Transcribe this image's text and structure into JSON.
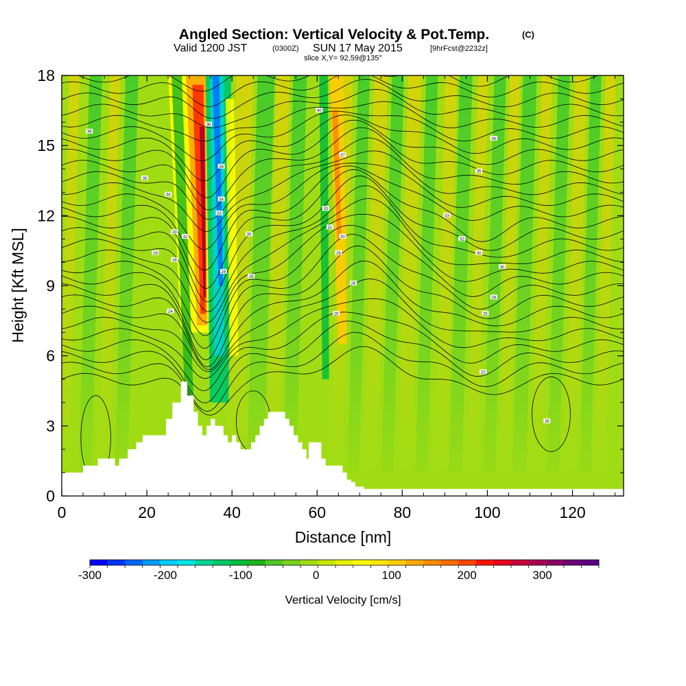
{
  "title": {
    "main": "Angled Section: Vertical Velocity & Pot.Temp.",
    "main_suffix": "(C)",
    "valid_prefix": "Valid 1200 JST",
    "valid_z": "(0300Z)",
    "valid_date": "SUN 17 May 2015",
    "forecast": "[9hrFcst@2232z]",
    "slice": "slice X,Y= 92,59@135°"
  },
  "chart_data": {
    "type": "heatmap",
    "xlabel": "Distance [nm]",
    "ylabel": "Height [Kft MSL]",
    "xlim": [
      0,
      132
    ],
    "ylim": [
      0,
      18
    ],
    "x_ticks": [
      0,
      20,
      40,
      60,
      80,
      100,
      120
    ],
    "y_ticks": [
      0,
      3,
      6,
      9,
      12,
      15,
      18
    ],
    "grid": false,
    "terrain": {
      "x": [
        0,
        5,
        5,
        8.5,
        8.5,
        12.5,
        12.5,
        13.5,
        13.5,
        15.5,
        15.5,
        17.5,
        17.5,
        19,
        19,
        24.5,
        24.5,
        26,
        26,
        28,
        28,
        29.5,
        29.5,
        31,
        31,
        32,
        32,
        33,
        33,
        34,
        34,
        35,
        35,
        36,
        36,
        38,
        38,
        39,
        39,
        40,
        40,
        41,
        41,
        42,
        42,
        44.5,
        44.5,
        45.5,
        45.5,
        46.5,
        46.5,
        47.5,
        47.5,
        48.5,
        48.5,
        52.5,
        52.5,
        53.5,
        53.5,
        54.5,
        54.5,
        55.5,
        55.5,
        56.5,
        56.5,
        57.5,
        57.5,
        58,
        58,
        61,
        61,
        62,
        62,
        66,
        66,
        67,
        67,
        68,
        68,
        69,
        69,
        71,
        71,
        132
      ],
      "height": [
        1.0,
        1.0,
        1.3,
        1.3,
        1.6,
        1.6,
        1.3,
        1.3,
        1.6,
        1.6,
        2.0,
        2.0,
        2.3,
        2.3,
        2.6,
        2.6,
        3.3,
        3.3,
        4.0,
        4.0,
        4.9,
        4.9,
        4.3,
        4.3,
        3.6,
        3.6,
        3.0,
        3.0,
        2.6,
        2.6,
        3.0,
        3.0,
        3.3,
        3.3,
        3.0,
        3.0,
        2.6,
        2.6,
        2.3,
        2.3,
        2.6,
        2.6,
        2.3,
        2.3,
        2.0,
        2.0,
        2.3,
        2.3,
        2.6,
        2.6,
        3.0,
        3.0,
        3.3,
        3.3,
        3.6,
        3.6,
        3.3,
        3.3,
        3.0,
        3.0,
        2.6,
        2.6,
        2.3,
        2.3,
        2.0,
        2.0,
        1.6,
        1.6,
        2.3,
        2.3,
        1.6,
        1.6,
        1.3,
        1.3,
        1.0,
        1.0,
        0.7,
        0.7,
        0.6,
        0.6,
        0.4,
        0.4,
        0.3,
        0.3
      ]
    },
    "colorbar": {
      "label": "Vertical Velocity [cm/s]",
      "min": -300,
      "max": 375,
      "step": 25,
      "tick_values": [
        -300,
        -200,
        -100,
        0,
        100,
        200,
        300
      ],
      "tick_labels": [
        "-300",
        "-200",
        "-100",
        "0",
        "100",
        "200",
        "300"
      ],
      "colors": [
        "#0000ff",
        "#0033ff",
        "#0066ff",
        "#0099ff",
        "#00ccff",
        "#00e5e5",
        "#00d296",
        "#00c864",
        "#00be3c",
        "#1eb41e",
        "#50c828",
        "#78d21e",
        "#a0dc14",
        "#c8e600",
        "#e6f000",
        "#ffff00",
        "#ffe600",
        "#ffcc00",
        "#ffaa00",
        "#ff8c00",
        "#ff6e00",
        "#ff4600",
        "#ff1400",
        "#e6001e",
        "#c8003c",
        "#aa0050",
        "#8c0064",
        "#6e0078",
        "#5a0082"
      ]
    },
    "contour_labels": [
      {
        "x": 6.5,
        "y": 15.6,
        "text": "36"
      },
      {
        "x": 19.5,
        "y": 13.6,
        "text": "35"
      },
      {
        "x": 25,
        "y": 12.9,
        "text": "34"
      },
      {
        "x": 26.5,
        "y": 11.3,
        "text": "33"
      },
      {
        "x": 29,
        "y": 11.1,
        "text": "32"
      },
      {
        "x": 22,
        "y": 10.4,
        "text": "29"
      },
      {
        "x": 26.5,
        "y": 10.1,
        "text": "28"
      },
      {
        "x": 25.5,
        "y": 7.9,
        "text": "24"
      },
      {
        "x": 34.5,
        "y": 15.9,
        "text": "36"
      },
      {
        "x": 37.5,
        "y": 14.1,
        "text": "35"
      },
      {
        "x": 37.5,
        "y": 12.7,
        "text": "34"
      },
      {
        "x": 37,
        "y": 12.1,
        "text": "33"
      },
      {
        "x": 44,
        "y": 11.2,
        "text": "30"
      },
      {
        "x": 38,
        "y": 9.6,
        "text": "28"
      },
      {
        "x": 44.5,
        "y": 9.4,
        "text": "26"
      },
      {
        "x": 60.5,
        "y": 16.5,
        "text": "40"
      },
      {
        "x": 66,
        "y": 14.6,
        "text": "37"
      },
      {
        "x": 62,
        "y": 12.3,
        "text": "33"
      },
      {
        "x": 63,
        "y": 11.5,
        "text": "31"
      },
      {
        "x": 66,
        "y": 11.1,
        "text": "30"
      },
      {
        "x": 65,
        "y": 10.4,
        "text": "29"
      },
      {
        "x": 68.5,
        "y": 9.1,
        "text": "26"
      },
      {
        "x": 64.5,
        "y": 7.8,
        "text": "25"
      },
      {
        "x": 101.5,
        "y": 15.3,
        "text": "36"
      },
      {
        "x": 98,
        "y": 13.9,
        "text": "35"
      },
      {
        "x": 90.5,
        "y": 12.0,
        "text": "33"
      },
      {
        "x": 94,
        "y": 11.0,
        "text": "32"
      },
      {
        "x": 98,
        "y": 10.4,
        "text": "30"
      },
      {
        "x": 103.5,
        "y": 9.8,
        "text": "30"
      },
      {
        "x": 101.5,
        "y": 8.5,
        "text": "28"
      },
      {
        "x": 99.5,
        "y": 7.8,
        "text": "25"
      },
      {
        "x": 99,
        "y": 5.3,
        "text": "22"
      },
      {
        "x": 114,
        "y": 3.2,
        "text": "26"
      }
    ]
  }
}
